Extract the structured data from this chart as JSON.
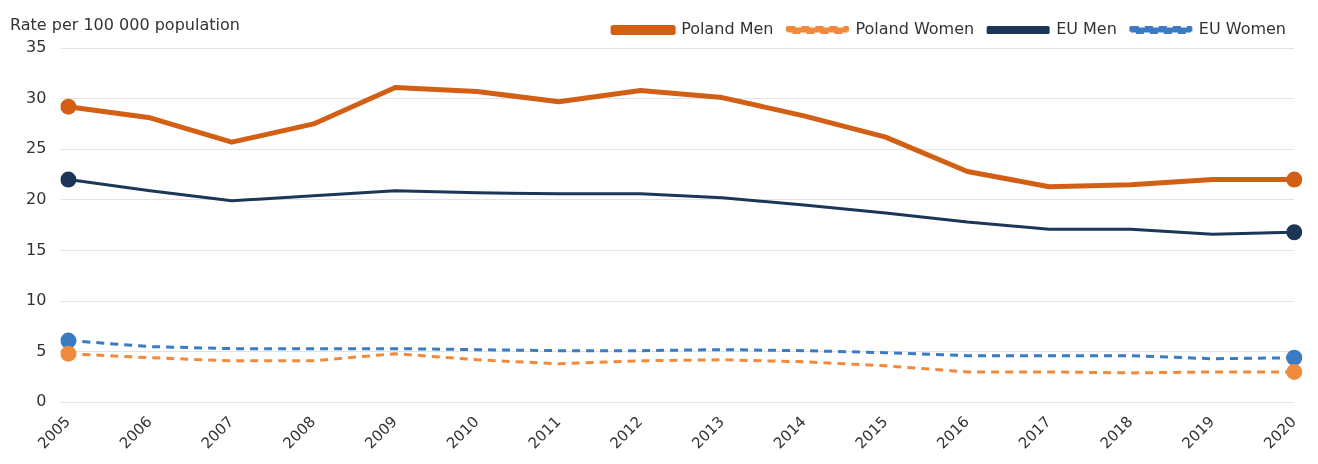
{
  "chart_data": {
    "type": "line",
    "ylabel": "Rate per 100 000 population",
    "categories": [
      "2005",
      "2006",
      "2007",
      "2008",
      "2009",
      "2010",
      "2011",
      "2012",
      "2013",
      "2014",
      "2015",
      "2016",
      "2017",
      "2018",
      "2019",
      "2020"
    ],
    "series": [
      {
        "name": "Poland Men",
        "color": "#d35f14",
        "line_style": "solid",
        "values": [
          29.2,
          28.1,
          25.7,
          27.5,
          31.1,
          30.7,
          29.7,
          30.8,
          30.1,
          28.3,
          26.2,
          22.8,
          21.3,
          21.5,
          22.0,
          22.0
        ]
      },
      {
        "name": "Poland Women",
        "color": "#f28a3d",
        "line_style": "dashed",
        "values": [
          4.8,
          4.4,
          4.1,
          4.1,
          4.8,
          4.2,
          3.8,
          4.1,
          4.2,
          4.0,
          3.6,
          3.0,
          3.0,
          2.9,
          3.0,
          3.0
        ]
      },
      {
        "name": "EU Men",
        "color": "#1c3658",
        "line_style": "solid",
        "values": [
          22.0,
          20.9,
          19.9,
          20.4,
          20.9,
          20.7,
          20.6,
          20.6,
          20.2,
          19.5,
          18.7,
          17.8,
          17.1,
          17.1,
          16.6,
          16.8
        ]
      },
      {
        "name": "EU Women",
        "color": "#3b7bc4",
        "line_style": "dashed",
        "values": [
          6.1,
          5.5,
          5.3,
          5.3,
          5.3,
          5.2,
          5.1,
          5.1,
          5.2,
          5.1,
          4.9,
          4.6,
          4.6,
          4.6,
          4.3,
          4.4
        ]
      }
    ],
    "ylim": [
      0,
      35
    ],
    "yticks": [
      0,
      5,
      10,
      15,
      20,
      25,
      30,
      35
    ],
    "grid": "y",
    "legend": "top right"
  }
}
